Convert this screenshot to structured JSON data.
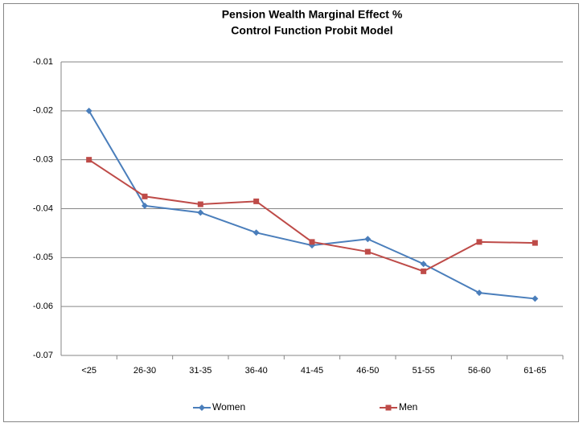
{
  "chart_data": {
    "type": "line",
    "title": "Pension Wealth Marginal Effect %",
    "subtitle": "Control Function Probit Model",
    "categories": [
      "<25",
      "26-30",
      "31-35",
      "36-40",
      "41-45",
      "46-50",
      "51-55",
      "56-60",
      "61-65"
    ],
    "series": [
      {
        "name": "Women",
        "color": "#4a7ebb",
        "marker": "diamond",
        "values": [
          -0.02,
          -0.0394,
          -0.0408,
          -0.0449,
          -0.0475,
          -0.0462,
          -0.0513,
          -0.0572,
          -0.0584
        ]
      },
      {
        "name": "Men",
        "color": "#be4b48",
        "marker": "square",
        "values": [
          -0.03,
          -0.0375,
          -0.0391,
          -0.0385,
          -0.0468,
          -0.0488,
          -0.0528,
          -0.0468,
          -0.047
        ]
      }
    ],
    "ylim": [
      -0.07,
      -0.01
    ],
    "yticks": [
      -0.07,
      -0.06,
      -0.05,
      -0.04,
      -0.03,
      -0.02,
      -0.01
    ],
    "grid": true,
    "legend": "bottom"
  }
}
